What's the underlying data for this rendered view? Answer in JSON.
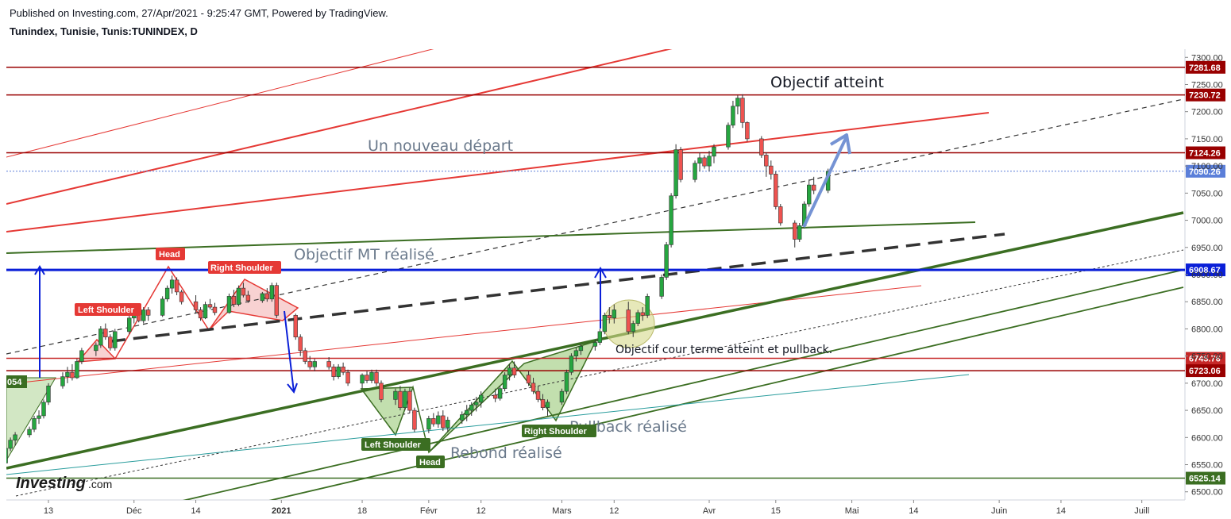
{
  "header": {
    "published": "Published on Investing.com, 27/Apr/2021 - 9:25:47 GMT, Powered by TradingView.",
    "symbol": "Tunindex, Tunisie, Tunis:TUNINDEX, D"
  },
  "watermark": {
    "brand": "Investing",
    "suffix": ".com"
  },
  "chart_data": {
    "type": "candlestick",
    "x_axis": {
      "tick_labels": [
        "13",
        "Déc",
        "14",
        "2021",
        "18",
        "Févr",
        "12",
        "Mars",
        "12",
        "Avr",
        "15",
        "Mai",
        "14",
        "Juin",
        "14",
        "Juill"
      ],
      "tick_dates": [
        "2020-11-13",
        "2020-12-01",
        "2020-12-14",
        "2021-01-01",
        "2021-01-18",
        "2021-02-01",
        "2021-02-12",
        "2021-03-01",
        "2021-03-12",
        "2021-04-01",
        "2021-04-15",
        "2021-05-01",
        "2021-05-14",
        "2021-06-01",
        "2021-06-14",
        "2021-07-01"
      ]
    },
    "y_axis": {
      "range": [
        6485,
        7315
      ],
      "tick_values": [
        6500,
        6550,
        6600,
        6650,
        6700,
        6750,
        6800,
        6850,
        6900,
        6950,
        7000,
        7050,
        7100,
        7150,
        7200,
        7250,
        7300
      ],
      "tick_labels": [
        "6500.00",
        "6550.00",
        "6600.00",
        "6650.00",
        "6700.00",
        "6750.00",
        "6800.00",
        "6850.00",
        "6900.00",
        "6950.00",
        "7000.00",
        "7050.00",
        "7100.00",
        "7150.00",
        "7200.00",
        "7250.00",
        "7300.00"
      ]
    },
    "colors": {
      "up": "#26a640",
      "down": "#ef5350"
    },
    "price_levels": [
      {
        "value": 7281.68,
        "label": "7281.68",
        "color": "#990000"
      },
      {
        "value": 7230.72,
        "label": "7230.72",
        "color": "#990000"
      },
      {
        "value": 7124.26,
        "label": "7124.26",
        "color": "#990000"
      },
      {
        "value": 7090.26,
        "label": "7090.26",
        "color": "#5b7fd9"
      },
      {
        "value": 6908.67,
        "label": "6908.67",
        "color": "#0a1fd8"
      },
      {
        "value": 6745.76,
        "label": "6745.76",
        "color": "#c62828"
      },
      {
        "value": 6723.06,
        "label": "6723.06",
        "color": "#990000"
      },
      {
        "value": 6525.14,
        "label": "6525.14",
        "color": "#3b6e22"
      }
    ],
    "left_tag": "054",
    "candles": [
      [
        "2020-11-03",
        6542,
        6560,
        6535,
        6555
      ],
      [
        "2020-11-04",
        6553,
        6585,
        6550,
        6580
      ],
      [
        "2020-11-05",
        6580,
        6600,
        6575,
        6595
      ],
      [
        "2020-11-06",
        6595,
        6610,
        6585,
        6605
      ],
      [
        "2020-11-09",
        6605,
        6620,
        6600,
        6615
      ],
      [
        "2020-11-10",
        6615,
        6640,
        6610,
        6635
      ],
      [
        "2020-11-11",
        6635,
        6650,
        6625,
        6640
      ],
      [
        "2020-11-12",
        6640,
        6670,
        6635,
        6665
      ],
      [
        "2020-11-13",
        6665,
        6700,
        6660,
        6695
      ],
      [
        "2020-11-16",
        6695,
        6720,
        6690,
        6712
      ],
      [
        "2020-11-17",
        6712,
        6730,
        6700,
        6720
      ],
      [
        "2020-11-18",
        6720,
        6735,
        6705,
        6710
      ],
      [
        "2020-11-19",
        6710,
        6745,
        6708,
        6740
      ],
      [
        "2020-11-20",
        6740,
        6765,
        6735,
        6760
      ],
      [
        "2020-11-23",
        6760,
        6775,
        6750,
        6770
      ],
      [
        "2020-11-24",
        6770,
        6805,
        6765,
        6800
      ],
      [
        "2020-11-25",
        6800,
        6810,
        6780,
        6785
      ],
      [
        "2020-11-26",
        6785,
        6790,
        6760,
        6765
      ],
      [
        "2020-11-27",
        6765,
        6800,
        6760,
        6795
      ],
      [
        "2020-11-30",
        6795,
        6825,
        6790,
        6820
      ],
      [
        "2020-12-01",
        6820,
        6835,
        6810,
        6830
      ],
      [
        "2020-12-02",
        6830,
        6845,
        6812,
        6815
      ],
      [
        "2020-12-03",
        6815,
        6840,
        6810,
        6835
      ],
      [
        "2020-12-04",
        6835,
        6840,
        6815,
        6825
      ],
      [
        "2020-12-07",
        6825,
        6860,
        6822,
        6855
      ],
      [
        "2020-12-08",
        6855,
        6880,
        6850,
        6875
      ],
      [
        "2020-12-09",
        6875,
        6898,
        6865,
        6890
      ],
      [
        "2020-12-10",
        6890,
        6895,
        6862,
        6868
      ],
      [
        "2020-12-11",
        6868,
        6872,
        6845,
        6850
      ],
      [
        "2020-12-14",
        6850,
        6862,
        6828,
        6835
      ],
      [
        "2020-12-15",
        6835,
        6840,
        6815,
        6820
      ],
      [
        "2020-12-16",
        6820,
        6850,
        6818,
        6845
      ],
      [
        "2020-12-17",
        6845,
        6855,
        6836,
        6840
      ],
      [
        "2020-12-18",
        6840,
        6848,
        6825,
        6830
      ],
      [
        "2020-12-21",
        6830,
        6865,
        6828,
        6860
      ],
      [
        "2020-12-22",
        6860,
        6872,
        6840,
        6845
      ],
      [
        "2020-12-23",
        6845,
        6880,
        6842,
        6875
      ],
      [
        "2020-12-24",
        6875,
        6885,
        6858,
        6862
      ],
      [
        "2020-12-25",
        6862,
        6870,
        6848,
        6852
      ],
      [
        "2020-12-28",
        6852,
        6868,
        6848,
        6865
      ],
      [
        "2020-12-29",
        6865,
        6875,
        6850,
        6855
      ],
      [
        "2020-12-30",
        6855,
        6885,
        6850,
        6880
      ],
      [
        "2020-12-31",
        6880,
        6885,
        6820,
        6825
      ],
      [
        "2021-01-04",
        6825,
        6828,
        6780,
        6785
      ],
      [
        "2021-01-05",
        6785,
        6790,
        6750,
        6760
      ],
      [
        "2021-01-06",
        6760,
        6765,
        6735,
        6740
      ],
      [
        "2021-01-07",
        6740,
        6750,
        6725,
        6730
      ],
      [
        "2021-01-08",
        6730,
        6745,
        6722,
        6740
      ],
      [
        "2021-01-11",
        6740,
        6748,
        6725,
        6730
      ],
      [
        "2021-01-12",
        6730,
        6735,
        6705,
        6712
      ],
      [
        "2021-01-13",
        6712,
        6735,
        6708,
        6730
      ],
      [
        "2021-01-14",
        6730,
        6738,
        6715,
        6720
      ],
      [
        "2021-01-15",
        6720,
        6725,
        6695,
        6700
      ],
      [
        "2021-01-18",
        6700,
        6718,
        6690,
        6715
      ],
      [
        "2021-01-19",
        6715,
        6722,
        6700,
        6705
      ],
      [
        "2021-01-20",
        6705,
        6725,
        6700,
        6720
      ],
      [
        "2021-01-21",
        6720,
        6725,
        6695,
        6700
      ],
      [
        "2021-01-22",
        6700,
        6705,
        6665,
        6670
      ],
      [
        "2021-01-25",
        6670,
        6690,
        6660,
        6685
      ],
      [
        "2021-01-26",
        6685,
        6695,
        6650,
        6655
      ],
      [
        "2021-01-27",
        6655,
        6690,
        6650,
        6685
      ],
      [
        "2021-01-28",
        6685,
        6692,
        6645,
        6650
      ],
      [
        "2021-01-29",
        6650,
        6655,
        6610,
        6615
      ],
      [
        "2021-02-01",
        6615,
        6640,
        6608,
        6635
      ],
      [
        "2021-02-02",
        6635,
        6645,
        6620,
        6625
      ],
      [
        "2021-02-03",
        6625,
        6648,
        6618,
        6640
      ],
      [
        "2021-02-04",
        6640,
        6650,
        6612,
        6618
      ],
      [
        "2021-02-05",
        6618,
        6638,
        6610,
        6632
      ],
      [
        "2021-02-08",
        6632,
        6648,
        6625,
        6642
      ],
      [
        "2021-02-09",
        6642,
        6660,
        6630,
        6650
      ],
      [
        "2021-02-10",
        6650,
        6665,
        6640,
        6660
      ],
      [
        "2021-02-11",
        6660,
        6675,
        6648,
        6665
      ],
      [
        "2021-02-12",
        6665,
        6685,
        6655,
        6678
      ],
      [
        "2021-02-15",
        6678,
        6690,
        6665,
        6672
      ],
      [
        "2021-02-16",
        6672,
        6695,
        6668,
        6690
      ],
      [
        "2021-02-17",
        6690,
        6720,
        6685,
        6715
      ],
      [
        "2021-02-18",
        6715,
        6735,
        6705,
        6728
      ],
      [
        "2021-02-19",
        6728,
        6740,
        6710,
        6715
      ],
      [
        "2021-02-22",
        6715,
        6722,
        6695,
        6700
      ],
      [
        "2021-02-23",
        6700,
        6710,
        6680,
        6685
      ],
      [
        "2021-02-24",
        6685,
        6695,
        6665,
        6670
      ],
      [
        "2021-02-25",
        6670,
        6680,
        6650,
        6655
      ],
      [
        "2021-02-26",
        6655,
        6670,
        6640,
        6665
      ],
      [
        "2021-03-01",
        6665,
        6690,
        6660,
        6685
      ],
      [
        "2021-03-02",
        6685,
        6725,
        6680,
        6720
      ],
      [
        "2021-03-03",
        6720,
        6755,
        6715,
        6750
      ],
      [
        "2021-03-04",
        6750,
        6765,
        6740,
        6760
      ],
      [
        "2021-03-05",
        6760,
        6772,
        6752,
        6768
      ],
      [
        "2021-03-08",
        6768,
        6780,
        6760,
        6775
      ],
      [
        "2021-03-09",
        6775,
        6800,
        6770,
        6795
      ],
      [
        "2021-03-10",
        6795,
        6830,
        6790,
        6825
      ],
      [
        "2021-03-11",
        6825,
        6840,
        6810,
        6820
      ],
      [
        "2021-03-12",
        6820,
        6845,
        6810,
        6835
      ],
      [
        "2021-03-15",
        6835,
        6850,
        6790,
        6795
      ],
      [
        "2021-03-16",
        6795,
        6815,
        6785,
        6810
      ],
      [
        "2021-03-17",
        6810,
        6835,
        6805,
        6830
      ],
      [
        "2021-03-18",
        6830,
        6840,
        6815,
        6825
      ],
      [
        "2021-03-19",
        6825,
        6865,
        6820,
        6860
      ],
      [
        "2021-03-22",
        6860,
        6900,
        6855,
        6895
      ],
      [
        "2021-03-23",
        6895,
        6960,
        6890,
        6955
      ],
      [
        "2021-03-24",
        6955,
        7050,
        6950,
        7045
      ],
      [
        "2021-03-25",
        7045,
        7140,
        7040,
        7130
      ],
      [
        "2021-03-26",
        7130,
        7135,
        7070,
        7075
      ],
      [
        "2021-03-29",
        7075,
        7110,
        7070,
        7105
      ],
      [
        "2021-03-30",
        7105,
        7125,
        7090,
        7115
      ],
      [
        "2021-03-31",
        7115,
        7120,
        7095,
        7100
      ],
      [
        "2021-04-01",
        7100,
        7128,
        7090,
        7118
      ],
      [
        "2021-04-02",
        7118,
        7140,
        7105,
        7135
      ],
      [
        "2021-04-05",
        7135,
        7180,
        7130,
        7175
      ],
      [
        "2021-04-06",
        7175,
        7220,
        7170,
        7210
      ],
      [
        "2021-04-07",
        7210,
        7230,
        7195,
        7225
      ],
      [
        "2021-04-08",
        7225,
        7232,
        7170,
        7180
      ],
      [
        "2021-04-09",
        7180,
        7182,
        7145,
        7150
      ],
      [
        "2021-04-12",
        7150,
        7155,
        7115,
        7120
      ],
      [
        "2021-04-13",
        7120,
        7125,
        7080,
        7100
      ],
      [
        "2021-04-14",
        7100,
        7110,
        7075,
        7085
      ],
      [
        "2021-04-15",
        7085,
        7090,
        7020,
        7025
      ],
      [
        "2021-04-16",
        7025,
        7030,
        6990,
        6995
      ],
      [
        "2021-04-19",
        6995,
        7000,
        6950,
        6965
      ],
      [
        "2021-04-20",
        6965,
        6995,
        6960,
        6990
      ],
      [
        "2021-04-21",
        6990,
        7035,
        6985,
        7030
      ],
      [
        "2021-04-22",
        7030,
        7075,
        7025,
        7065
      ],
      [
        "2021-04-23",
        7065,
        7080,
        7048,
        7055
      ],
      [
        "2021-04-26",
        7055,
        7095,
        7050,
        7090
      ]
    ]
  },
  "annotations": {
    "objectif_atteint": "Objectif atteint",
    "nouveau_depart": "Un nouveau départ",
    "objectif_mt": "Objectif MT réalisé",
    "objectif_court": "Objectif cour terme atteint et pullback.",
    "pullback": "Pullback réalisé",
    "rebond": "Rebond réalisé",
    "head_top": "Head",
    "left_shoulder_top": "Left Shoulder",
    "right_shoulder_top": "Right Shoulder",
    "left_shoulder_bottom": "Left Shoulder",
    "head_bottom": "Head",
    "right_shoulder_bottom": "Right Shoulder"
  }
}
